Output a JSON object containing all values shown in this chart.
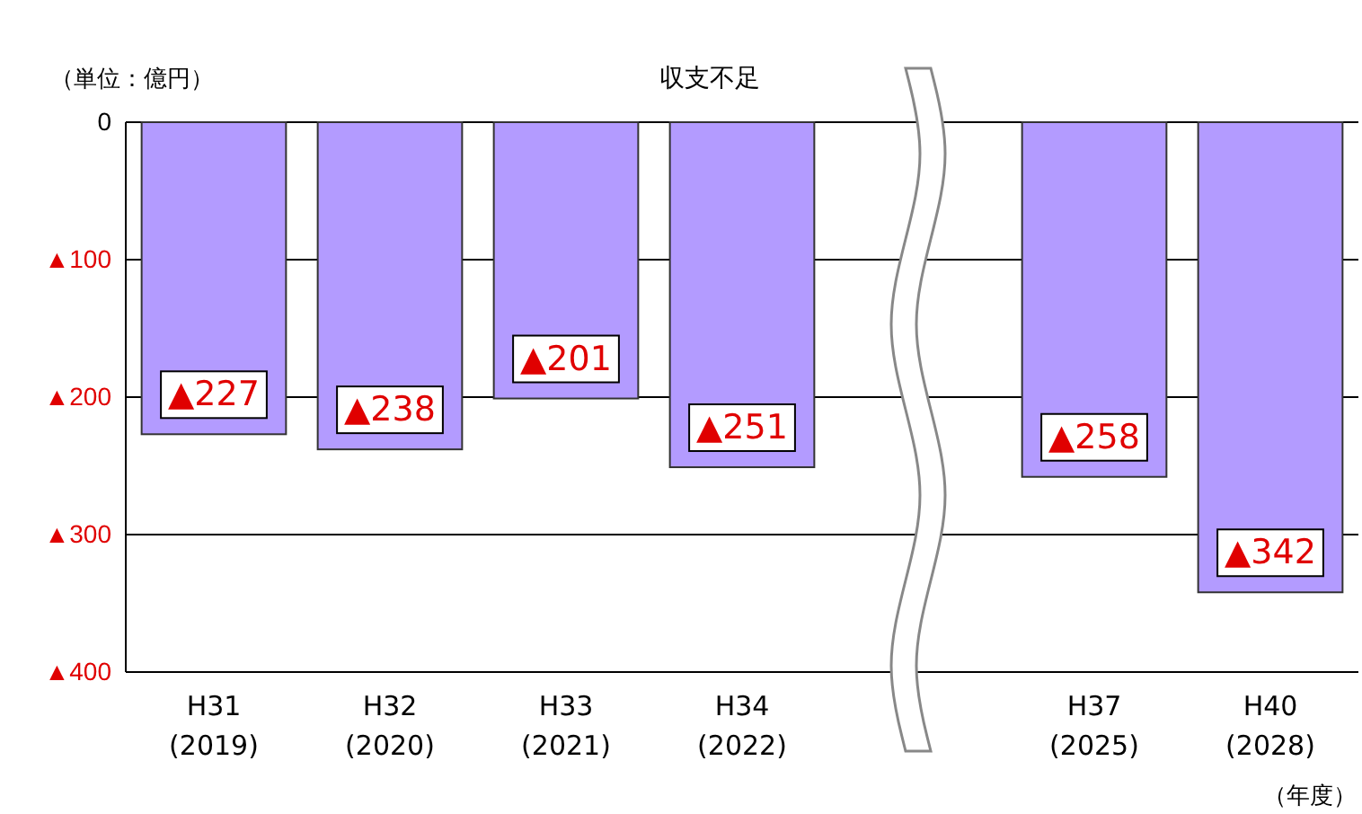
{
  "chart_data": {
    "type": "bar",
    "title": "収支不足",
    "ylabel": "（単位：億円）",
    "xlabel": "（年度）",
    "categories": [
      "H31\n(2019)",
      "H32\n(2020)",
      "H33\n(2021)",
      "H34\n(2022)",
      null,
      "H37\n(2025)",
      "H40\n(2028)"
    ],
    "values": [
      227,
      238,
      201,
      251,
      null,
      258,
      342
    ],
    "value_labels": [
      "▲227",
      "▲238",
      "▲201",
      "▲251",
      null,
      "▲258",
      "▲342"
    ],
    "color": "#b39bff",
    "ylim": [
      400,
      0
    ],
    "yticks": [
      0,
      {
        "value": 100,
        "label": "▲100"
      },
      {
        "value": 200,
        "label": "▲200"
      },
      {
        "value": 300,
        "label": "▲300"
      },
      {
        "value": 400,
        "label": "▲400"
      }
    ],
    "grid": "y"
  }
}
